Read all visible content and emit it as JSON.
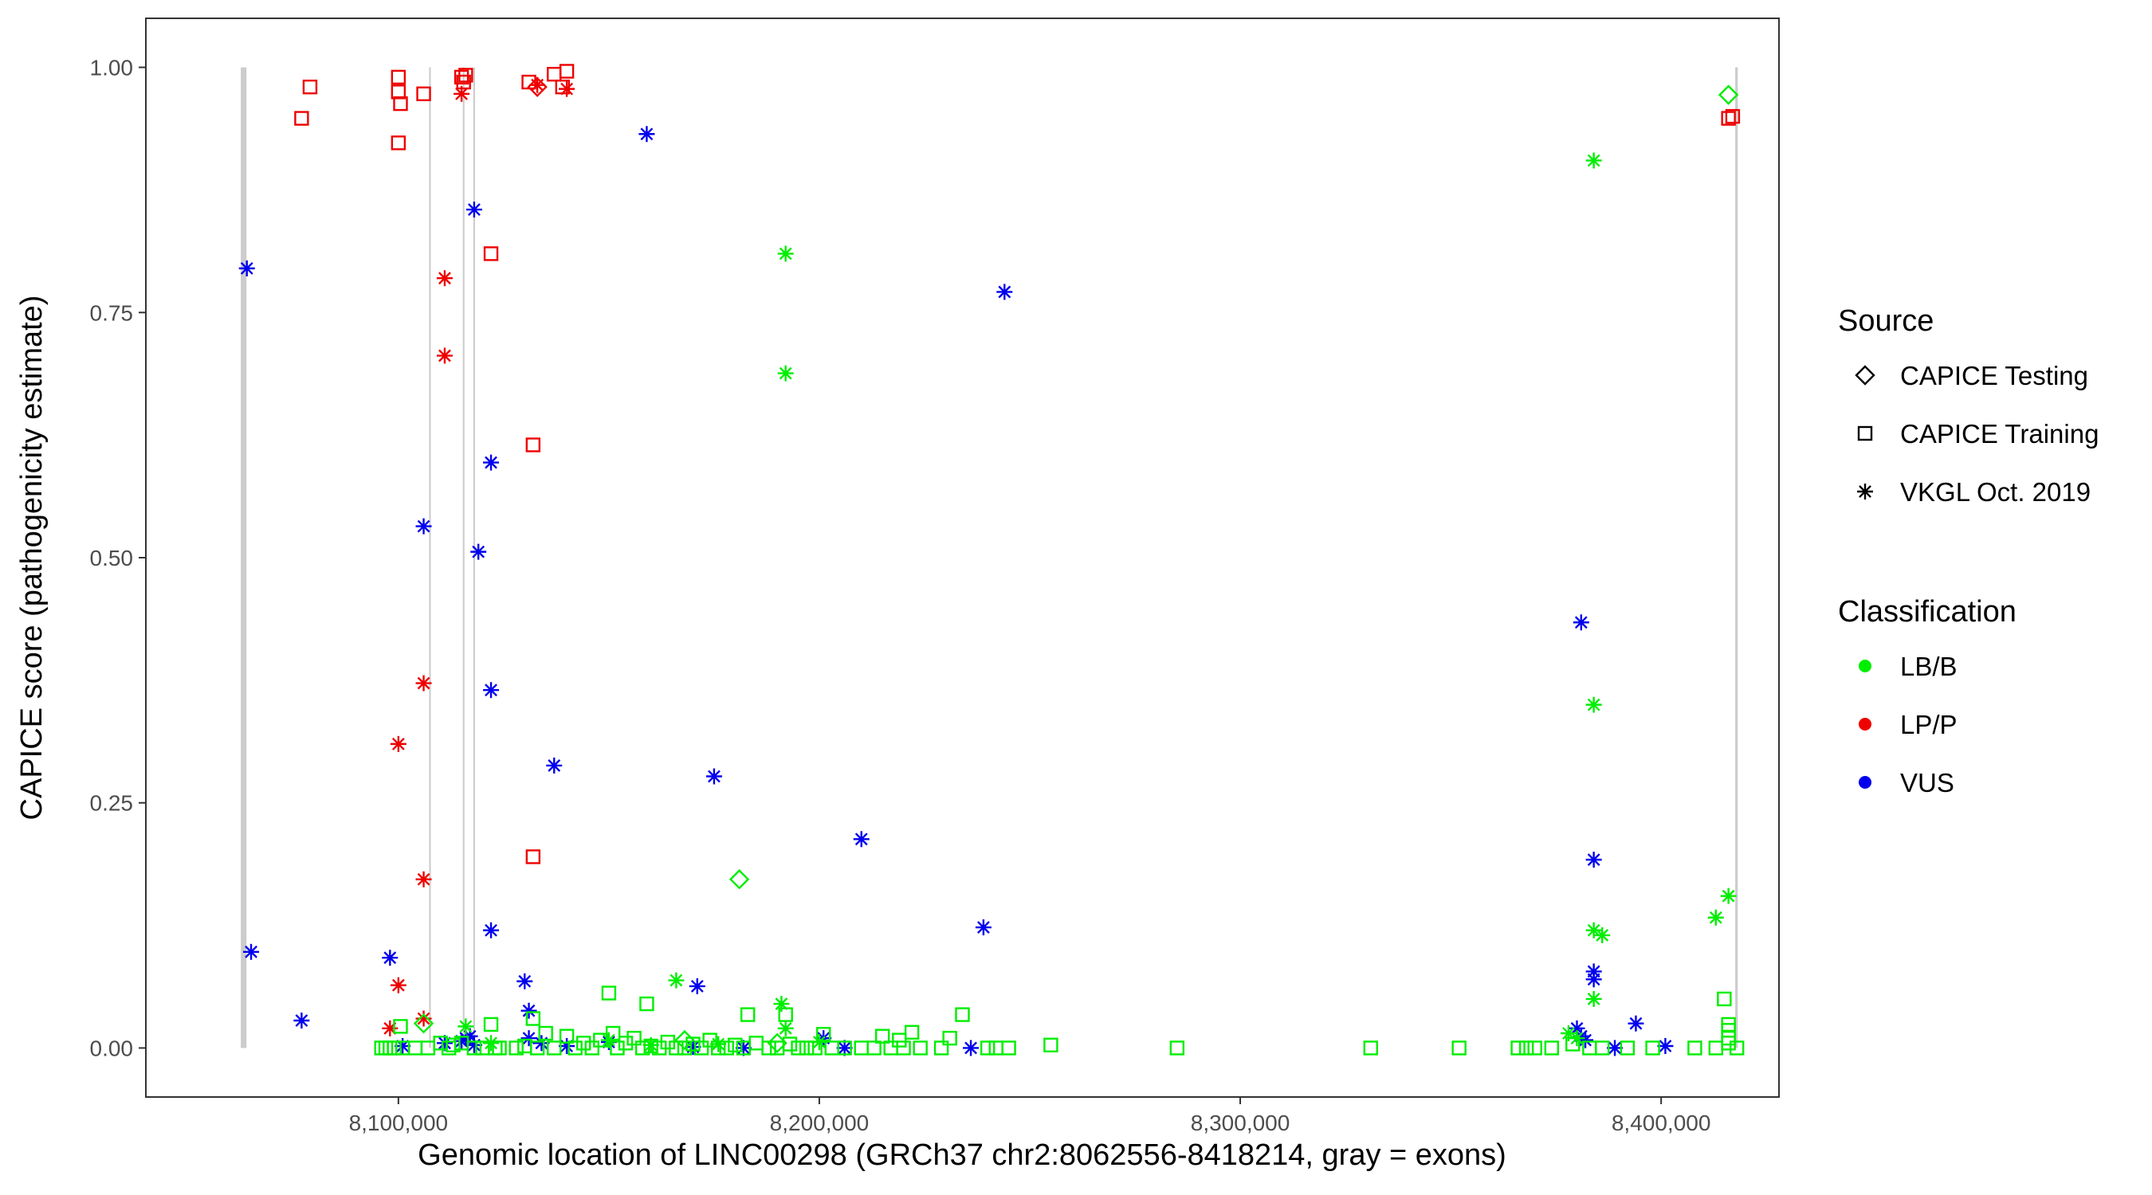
{
  "chart_data": {
    "type": "scatter",
    "title": "",
    "xlabel": "Genomic location of LINC00298 (GRCh37 chr2:8062556-8418214, gray = exons)",
    "ylabel": "CAPICE score (pathogenicity estimate)",
    "xlim": [
      8040000,
      8428000
    ],
    "ylim": [
      -0.05,
      1.05
    ],
    "x_ticks": [
      8100000,
      8200000,
      8300000,
      8400000
    ],
    "x_tick_labels": [
      "8,100,000",
      "8,200,000",
      "8,300,000",
      "8,400,000"
    ],
    "y_ticks": [
      0,
      0.25,
      0.5,
      0.75,
      1
    ],
    "y_tick_labels": [
      "0.00",
      "0.25",
      "0.50",
      "0.75",
      "1.00"
    ],
    "grid": false,
    "exons": [
      {
        "start": 8062556,
        "end": 8063900
      },
      {
        "start": 8107300,
        "end": 8107700
      },
      {
        "start": 8115300,
        "end": 8115700
      },
      {
        "start": 8117800,
        "end": 8118200
      },
      {
        "start": 8417600,
        "end": 8418214
      }
    ],
    "colors": {
      "LB/B": "#00ee00",
      "LP/P": "#ee0000",
      "VUS": "#0000ee",
      "exon": "#cccccc"
    },
    "legend": {
      "placement": "right",
      "source_title": "Source",
      "source_items": [
        {
          "label": "CAPICE Testing",
          "shape": "diamond"
        },
        {
          "label": "CAPICE Training",
          "shape": "square"
        },
        {
          "label": "VKGL Oct. 2019",
          "shape": "asterisk"
        }
      ],
      "class_title": "Classification",
      "class_items": [
        {
          "label": "LB/B",
          "color": "#00ee00"
        },
        {
          "label": "LP/P",
          "color": "#ee0000"
        },
        {
          "label": "VUS",
          "color": "#0000ee"
        }
      ]
    },
    "series": [
      {
        "source": "CAPICE Training",
        "classification": "LP/P",
        "points": [
          [
            8077000,
            0.948
          ],
          [
            8079000,
            0.98
          ],
          [
            8100000,
            0.99
          ],
          [
            8100000,
            0.975
          ],
          [
            8100500,
            0.963
          ],
          [
            8100000,
            0.923
          ],
          [
            8106000,
            0.973
          ],
          [
            8115000,
            0.99
          ],
          [
            8115500,
            0.985
          ],
          [
            8116000,
            0.992
          ],
          [
            8131000,
            0.985
          ],
          [
            8137000,
            0.993
          ],
          [
            8140000,
            0.996
          ],
          [
            8139000,
            0.98
          ],
          [
            8122000,
            0.81
          ],
          [
            8132000,
            0.615
          ],
          [
            8132000,
            0.195
          ],
          [
            8416000,
            0.948
          ],
          [
            8417000,
            0.95
          ]
        ]
      },
      {
        "source": "CAPICE Testing",
        "classification": "LP/P",
        "points": [
          [
            8133000,
            0.98
          ]
        ]
      },
      {
        "source": "VKGL Oct. 2019",
        "classification": "LP/P",
        "points": [
          [
            8115000,
            0.973
          ],
          [
            8133000,
            0.982
          ],
          [
            8140000,
            0.978
          ],
          [
            8111000,
            0.785
          ],
          [
            8111000,
            0.706
          ],
          [
            8106000,
            0.372
          ],
          [
            8100000,
            0.31
          ],
          [
            8106000,
            0.172
          ],
          [
            8100000,
            0.064
          ],
          [
            8106000,
            0.03
          ],
          [
            8098000,
            0.02
          ]
        ]
      },
      {
        "source": "VKGL Oct. 2019",
        "classification": "VUS",
        "points": [
          [
            8064000,
            0.795
          ],
          [
            8065000,
            0.098
          ],
          [
            8077000,
            0.028
          ],
          [
            8159000,
            0.932
          ],
          [
            8118000,
            0.855
          ],
          [
            8244000,
            0.771
          ],
          [
            8122000,
            0.597
          ],
          [
            8106000,
            0.532
          ],
          [
            8119000,
            0.506
          ],
          [
            8122000,
            0.365
          ],
          [
            8137000,
            0.288
          ],
          [
            8175000,
            0.277
          ],
          [
            8210000,
            0.213
          ],
          [
            8239000,
            0.123
          ],
          [
            8122000,
            0.12
          ],
          [
            8098000,
            0.092
          ],
          [
            8130000,
            0.068
          ],
          [
            8171000,
            0.063
          ],
          [
            8131000,
            0.038
          ],
          [
            8381000,
            0.434
          ],
          [
            8384000,
            0.192
          ],
          [
            8384000,
            0.078
          ],
          [
            8384000,
            0.07
          ],
          [
            8394000,
            0.025
          ],
          [
            8380000,
            0.02
          ],
          [
            8381000,
            0.012
          ],
          [
            8382000,
            0.008
          ],
          [
            8101000,
            0.002
          ],
          [
            8111000,
            0.005
          ],
          [
            8115000,
            0.007
          ],
          [
            8116000,
            0.01
          ],
          [
            8117000,
            0.012
          ],
          [
            8118000,
            0.003
          ],
          [
            8131000,
            0.01
          ],
          [
            8134000,
            0.005
          ],
          [
            8140000,
            0.002
          ],
          [
            8150000,
            0.006
          ],
          [
            8170000,
            0.001
          ],
          [
            8182000,
            0.0
          ],
          [
            8201000,
            0.01
          ],
          [
            8206000,
            0.0
          ],
          [
            8236000,
            0.0
          ],
          [
            8389000,
            0.0
          ],
          [
            8401000,
            0.002
          ]
        ]
      },
      {
        "source": "VKGL Oct. 2019",
        "classification": "LB/B",
        "points": [
          [
            8384000,
            0.905
          ],
          [
            8192000,
            0.81
          ],
          [
            8192000,
            0.688
          ],
          [
            8384000,
            0.35
          ],
          [
            8416000,
            0.155
          ],
          [
            8413000,
            0.133
          ],
          [
            8384000,
            0.12
          ],
          [
            8386000,
            0.115
          ],
          [
            8166000,
            0.069
          ],
          [
            8384000,
            0.05
          ],
          [
            8191000,
            0.045
          ],
          [
            8192000,
            0.02
          ],
          [
            8116000,
            0.022
          ],
          [
            8378000,
            0.015
          ],
          [
            8380000,
            0.01
          ],
          [
            8122000,
            0.005
          ],
          [
            8150000,
            0.008
          ],
          [
            8160000,
            0.003
          ],
          [
            8176000,
            0.004
          ],
          [
            8200000,
            0.006
          ]
        ]
      },
      {
        "source": "CAPICE Testing",
        "classification": "LB/B",
        "points": [
          [
            8416000,
            0.972
          ],
          [
            8181000,
            0.172
          ],
          [
            8106000,
            0.025
          ],
          [
            8168000,
            0.008
          ],
          [
            8190000,
            0.005
          ]
        ]
      },
      {
        "source": "CAPICE Training",
        "classification": "LB/B",
        "points": [
          [
            8096000,
            0.0
          ],
          [
            8097000,
            0.0
          ],
          [
            8098000,
            0.0
          ],
          [
            8099000,
            0.0
          ],
          [
            8100500,
            0.022
          ],
          [
            8101000,
            0.0
          ],
          [
            8104000,
            0.0
          ],
          [
            8107000,
            0.0
          ],
          [
            8110000,
            0.005
          ],
          [
            8112000,
            0.0
          ],
          [
            8113000,
            0.003
          ],
          [
            8115000,
            0.005
          ],
          [
            8118000,
            0.0
          ],
          [
            8120000,
            0.0
          ],
          [
            8122000,
            0.024
          ],
          [
            8123000,
            0.0
          ],
          [
            8124000,
            0.0
          ],
          [
            8128000,
            0.0
          ],
          [
            8130000,
            0.002
          ],
          [
            8132000,
            0.03
          ],
          [
            8133000,
            0.0
          ],
          [
            8135000,
            0.015
          ],
          [
            8137000,
            0.0
          ],
          [
            8140000,
            0.012
          ],
          [
            8142000,
            0.0
          ],
          [
            8144000,
            0.005
          ],
          [
            8146000,
            0.0
          ],
          [
            8148000,
            0.008
          ],
          [
            8150000,
            0.056
          ],
          [
            8151000,
            0.015
          ],
          [
            8152000,
            0.0
          ],
          [
            8154000,
            0.005
          ],
          [
            8156000,
            0.01
          ],
          [
            8158000,
            0.0
          ],
          [
            8159000,
            0.045
          ],
          [
            8160000,
            0.002
          ],
          [
            8162000,
            0.0
          ],
          [
            8164000,
            0.006
          ],
          [
            8166000,
            0.0
          ],
          [
            8168000,
            0.0
          ],
          [
            8170000,
            0.004
          ],
          [
            8172000,
            0.0
          ],
          [
            8174000,
            0.008
          ],
          [
            8176000,
            0.0
          ],
          [
            8178000,
            0.0
          ],
          [
            8180000,
            0.003
          ],
          [
            8182000,
            0.0
          ],
          [
            8183000,
            0.034
          ],
          [
            8185000,
            0.005
          ],
          [
            8188000,
            0.0
          ],
          [
            8190000,
            0.0
          ],
          [
            8192000,
            0.034
          ],
          [
            8193000,
            0.004
          ],
          [
            8195000,
            0.0
          ],
          [
            8197000,
            0.0
          ],
          [
            8199000,
            0.0
          ],
          [
            8201000,
            0.014
          ],
          [
            8203000,
            0.0
          ],
          [
            8206000,
            0.0
          ],
          [
            8210000,
            0.0
          ],
          [
            8213000,
            0.0
          ],
          [
            8215000,
            0.012
          ],
          [
            8217000,
            0.0
          ],
          [
            8219000,
            0.008
          ],
          [
            8220000,
            0.0
          ],
          [
            8222000,
            0.016
          ],
          [
            8224000,
            0.0
          ],
          [
            8229000,
            0.0
          ],
          [
            8231000,
            0.01
          ],
          [
            8234000,
            0.034
          ],
          [
            8240000,
            0.0
          ],
          [
            8242000,
            0.0
          ],
          [
            8245000,
            0.0
          ],
          [
            8255000,
            0.003
          ],
          [
            8285000,
            0.0
          ],
          [
            8331000,
            0.0
          ],
          [
            8352000,
            0.0
          ],
          [
            8366000,
            0.0
          ],
          [
            8368000,
            0.0
          ],
          [
            8370000,
            0.0
          ],
          [
            8374000,
            0.0
          ],
          [
            8379000,
            0.004
          ],
          [
            8383000,
            0.0
          ],
          [
            8386000,
            0.0
          ],
          [
            8392000,
            0.0
          ],
          [
            8398000,
            0.0
          ],
          [
            8408000,
            0.0
          ],
          [
            8413000,
            0.0
          ],
          [
            8415000,
            0.05
          ],
          [
            8416000,
            0.024
          ],
          [
            8416000,
            0.018
          ],
          [
            8416000,
            0.01
          ],
          [
            8416000,
            0.005
          ],
          [
            8418000,
            0.0
          ]
        ]
      }
    ]
  }
}
